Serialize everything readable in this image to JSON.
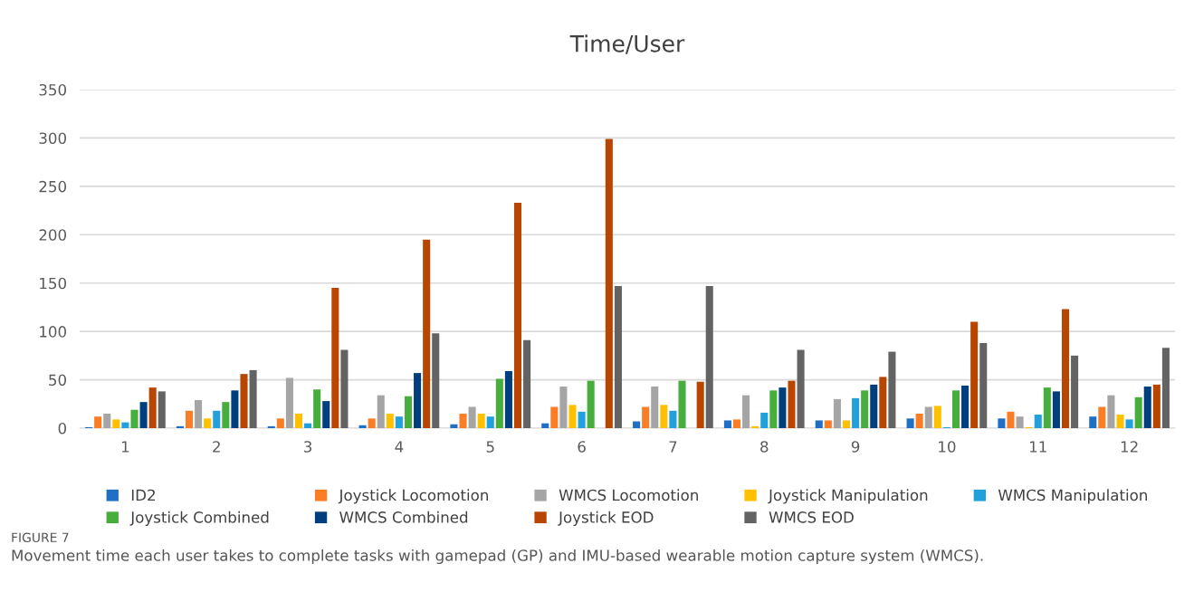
{
  "chart_data": {
    "type": "bar",
    "title": "Time/User",
    "categories": [
      "1",
      "2",
      "3",
      "4",
      "5",
      "6",
      "7",
      "8",
      "9",
      "10",
      "11",
      "12"
    ],
    "series": [
      {
        "name": "ID2",
        "color": "#1f6fc5",
        "values": [
          1,
          2,
          2,
          3,
          4,
          5,
          7,
          8,
          8,
          10,
          10,
          12
        ]
      },
      {
        "name": "Joystick Locomotion",
        "color": "#fb7d26",
        "values": [
          12,
          18,
          10,
          10,
          15,
          22,
          22,
          9,
          8,
          15,
          17,
          22
        ]
      },
      {
        "name": "WMCS Locomotion",
        "color": "#a5a5a5",
        "values": [
          15,
          29,
          52,
          34,
          22,
          43,
          43,
          34,
          30,
          22,
          12,
          34
        ]
      },
      {
        "name": "Joystick Manipulation",
        "color": "#ffc000",
        "values": [
          9,
          10,
          15,
          15,
          15,
          24,
          24,
          2,
          8,
          23,
          1,
          14
        ]
      },
      {
        "name": "WMCS Manipulation",
        "color": "#21a0dc",
        "values": [
          6,
          18,
          5,
          12,
          12,
          17,
          18,
          16,
          31,
          1,
          14,
          9
        ]
      },
      {
        "name": "Joystick Combined",
        "color": "#47ad3c",
        "values": [
          19,
          27,
          40,
          33,
          51,
          49,
          49,
          39,
          39,
          39,
          42,
          32
        ]
      },
      {
        "name": "WMCS Combined",
        "color": "#003f7d",
        "values": [
          27,
          39,
          28,
          57,
          59,
          null,
          null,
          42,
          45,
          44,
          38,
          43
        ]
      },
      {
        "name": "Joystick EOD",
        "color": "#b84600",
        "values": [
          42,
          56,
          145,
          195,
          233,
          299,
          48,
          49,
          53,
          110,
          123,
          45
        ]
      },
      {
        "name": "WMCS EOD",
        "color": "#636363",
        "values": [
          38,
          60,
          81,
          98,
          91,
          147,
          147,
          81,
          79,
          88,
          75,
          83
        ]
      }
    ],
    "ylim": [
      0,
      350
    ],
    "yticks": [
      0,
      50,
      100,
      150,
      200,
      250,
      300,
      350
    ],
    "grid": "y",
    "legend": "bottom",
    "annotations": [
      "FIGURE 7",
      "Movement time each user takes to complete tasks with gamepad (GP) and IMU-based wearable motion capture system (WMCS)."
    ]
  }
}
